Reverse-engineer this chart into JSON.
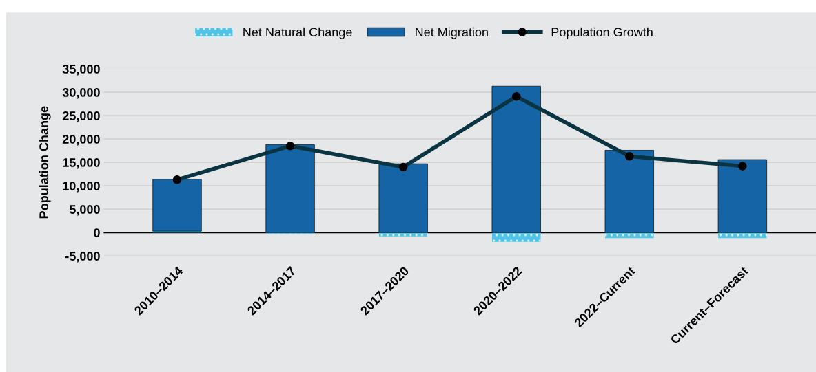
{
  "chart_data": {
    "type": "bar",
    "stacked": true,
    "ylabel": "Population Change",
    "categories": [
      "2010–2014",
      "2014–2017",
      "2017–2020",
      "2020–2022",
      "2022–Current",
      "Current–Forecast"
    ],
    "series": [
      {
        "name": "Net Natural Change",
        "color": "#4fc3e8",
        "values": [
          300,
          -300,
          -800,
          -2000,
          -1200,
          -1200
        ]
      },
      {
        "name": "Net Migration",
        "color": "#1565a6",
        "values": [
          11100,
          18800,
          14700,
          31300,
          17600,
          15600
        ]
      },
      {
        "name": "Population Growth",
        "type": "line",
        "color": "#0b3442",
        "values": [
          11300,
          18500,
          14000,
          29100,
          16300,
          14200
        ]
      }
    ],
    "ylim": [
      -5000,
      35000
    ],
    "yticks": [
      {
        "value": -5000,
        "label": "-5,000"
      },
      0,
      {
        "value": 5000,
        "label": "5,000"
      },
      {
        "value": 10000,
        "label": "10,000"
      },
      {
        "value": 15000,
        "label": "15,000"
      },
      {
        "value": 20000,
        "label": "20,000"
      },
      {
        "value": 25000,
        "label": "25,000"
      },
      {
        "value": 30000,
        "label": "30,000"
      },
      {
        "value": 35000,
        "label": "35,000"
      }
    ],
    "grid": "y",
    "legend": "top",
    "marker": "circle"
  }
}
